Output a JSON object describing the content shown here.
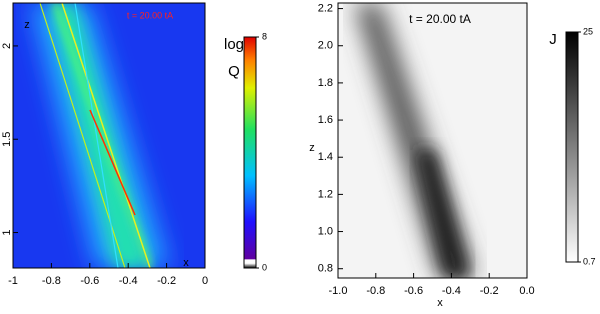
{
  "chart_data": [
    {
      "type": "image",
      "annotation": "t = 20.00 tA",
      "annotation_color": "#ff2020",
      "xlabel": "x",
      "ylabel": "z",
      "xlim": [
        -1,
        0
      ],
      "xticks": [
        -1,
        -0.8,
        -0.6,
        -0.4,
        -0.2,
        0
      ],
      "ylim": [
        0.81,
        2.23
      ],
      "yticks": [
        1,
        1.5,
        2
      ],
      "colorbar": {
        "label": [
          "log",
          "Q"
        ],
        "lim": [
          0,
          8
        ],
        "ticks": [
          0,
          8
        ]
      }
    },
    {
      "type": "image",
      "annotation": "t = 20.00 tA",
      "annotation_color": "#000000",
      "xlabel": "x",
      "ylabel": "z",
      "xlim": [
        -1,
        0
      ],
      "xticks": [
        {
          "value": -1,
          "label": "-1.0"
        },
        -0.8,
        -0.6,
        -0.4,
        -0.2,
        {
          "value": 0,
          "label": "0.0"
        }
      ],
      "ylim": [
        0.75,
        2.23
      ],
      "yticks": [
        0.8,
        {
          "value": 1,
          "label": "1.0"
        },
        1.2,
        1.4,
        1.6,
        1.8,
        {
          "value": 2,
          "label": "2.0"
        },
        2.2
      ],
      "colorbar": {
        "label": [
          "J"
        ],
        "lim": [
          0.7,
          25
        ],
        "ticks": [
          0.7,
          25
        ]
      }
    }
  ]
}
